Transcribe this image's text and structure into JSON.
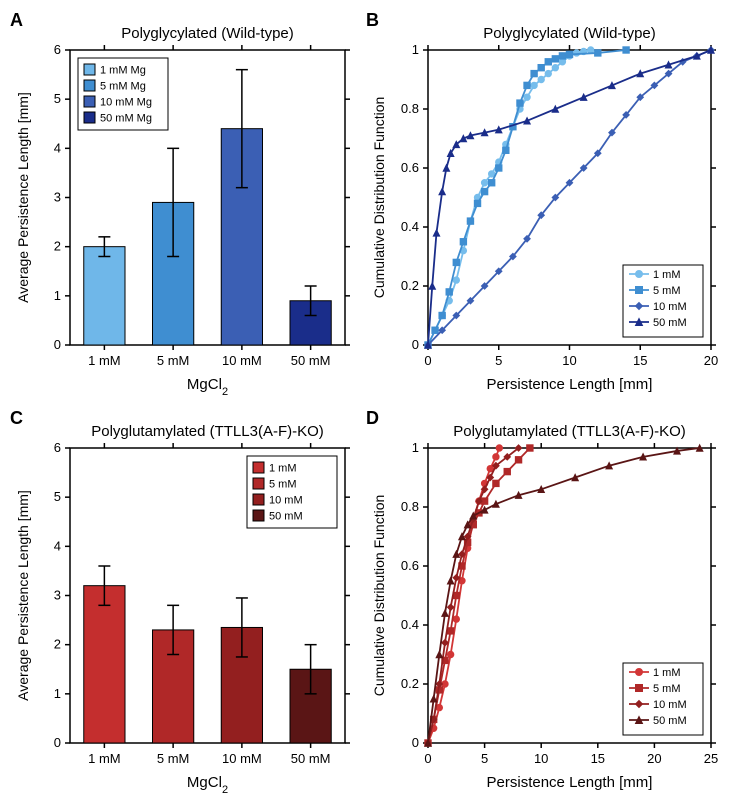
{
  "panelA": {
    "label": "A",
    "title": "Polyglycylated (Wild-type)",
    "type": "bar",
    "xlabel": "MgCl",
    "xlabel_sub": "2",
    "ylabel": "Average Persistence Length [mm]",
    "categories": [
      "1 mM",
      "5 mM",
      "10 mM",
      "50 mM"
    ],
    "values": [
      2.0,
      2.9,
      4.4,
      0.9
    ],
    "err": [
      0.2,
      1.1,
      1.2,
      0.3
    ],
    "bar_colors": [
      "#6fb7e9",
      "#3f8ed1",
      "#3b5fb4",
      "#1a2d8a"
    ],
    "ylim": [
      0,
      6
    ],
    "ytick_step": 1,
    "legend": [
      "1 mM Mg",
      "5 mM Mg",
      "10 mM Mg",
      "50 mM Mg"
    ],
    "legend_pos": "top-left",
    "border_color": "#000000",
    "bg_color": "#ffffff",
    "font_size": 12
  },
  "panelB": {
    "label": "B",
    "title": "Polyglycylated (Wild-type)",
    "type": "line",
    "xlabel": "Persistence Length [mm]",
    "ylabel": "Cumulative Distribution Function",
    "xlim": [
      0,
      20
    ],
    "ylim": [
      0,
      1
    ],
    "xtick_step": 5,
    "ytick_step": 0.2,
    "legend_pos": "bottom-right",
    "series": [
      {
        "name": "1 mM",
        "color": "#76bdec",
        "marker": "circle",
        "x": [
          0,
          0.5,
          1,
          1.5,
          2,
          2.5,
          3,
          3.5,
          4,
          4.5,
          5,
          5.5,
          6,
          6.5,
          7,
          7.5,
          8,
          8.5,
          9,
          9.5,
          10,
          10.5,
          11,
          11.5
        ],
        "y": [
          0,
          0.05,
          0.1,
          0.15,
          0.22,
          0.32,
          0.42,
          0.5,
          0.55,
          0.58,
          0.62,
          0.68,
          0.74,
          0.8,
          0.84,
          0.88,
          0.9,
          0.92,
          0.94,
          0.96,
          0.98,
          0.99,
          0.995,
          1
        ]
      },
      {
        "name": "5 mM",
        "color": "#3f8ed1",
        "marker": "square",
        "x": [
          0,
          0.5,
          1,
          1.5,
          2,
          2.5,
          3,
          3.5,
          4,
          4.5,
          5,
          5.5,
          6,
          6.5,
          7,
          7.5,
          8,
          8.5,
          9,
          9.5,
          10,
          12,
          14
        ],
        "y": [
          0,
          0.05,
          0.1,
          0.18,
          0.28,
          0.35,
          0.42,
          0.48,
          0.52,
          0.55,
          0.6,
          0.66,
          0.74,
          0.82,
          0.88,
          0.92,
          0.94,
          0.96,
          0.97,
          0.98,
          0.985,
          0.99,
          1
        ]
      },
      {
        "name": "10 mM",
        "color": "#3b5fb4",
        "marker": "diamond",
        "x": [
          0,
          1,
          2,
          3,
          4,
          5,
          6,
          7,
          8,
          9,
          10,
          11,
          12,
          13,
          14,
          15,
          16,
          17,
          18,
          19,
          20
        ],
        "y": [
          0,
          0.05,
          0.1,
          0.15,
          0.2,
          0.25,
          0.3,
          0.36,
          0.44,
          0.5,
          0.55,
          0.6,
          0.65,
          0.72,
          0.78,
          0.84,
          0.88,
          0.92,
          0.96,
          0.98,
          1
        ]
      },
      {
        "name": "50 mM",
        "color": "#1a2d8a",
        "marker": "triangle",
        "x": [
          0,
          0.3,
          0.6,
          1,
          1.3,
          1.6,
          2,
          2.5,
          3,
          4,
          5,
          7,
          9,
          11,
          13,
          15,
          17,
          19,
          20
        ],
        "y": [
          0,
          0.2,
          0.38,
          0.52,
          0.6,
          0.65,
          0.68,
          0.7,
          0.71,
          0.72,
          0.73,
          0.76,
          0.8,
          0.84,
          0.88,
          0.92,
          0.95,
          0.98,
          1
        ]
      }
    ]
  },
  "panelC": {
    "label": "C",
    "title": "Polyglutamylated (TTLL3(A-F)-KO)",
    "type": "bar",
    "xlabel": "MgCl",
    "xlabel_sub": "2",
    "ylabel": "Average Persistence Length [mm]",
    "categories": [
      "1 mM",
      "5 mM",
      "10 mM",
      "50 mM"
    ],
    "values": [
      3.2,
      2.3,
      2.35,
      1.5
    ],
    "err": [
      0.4,
      0.5,
      0.6,
      0.5
    ],
    "bar_colors": [
      "#c42e2e",
      "#b02828",
      "#931f1f",
      "#5a1515"
    ],
    "ylim": [
      0,
      6
    ],
    "ytick_step": 1,
    "legend": [
      "1 mM",
      "5 mM",
      "10 mM",
      "50 mM"
    ],
    "legend_pos": "top-right",
    "border_color": "#000000",
    "bg_color": "#ffffff",
    "font_size": 12
  },
  "panelD": {
    "label": "D",
    "title": "Polyglutamylated (TTLL3(A-F)-KO)",
    "type": "line",
    "xlabel": "Persistence Length [mm]",
    "ylabel": "Cumulative Distribution Function",
    "xlim": [
      0,
      25
    ],
    "ylim": [
      0,
      1
    ],
    "xtick_step": 5,
    "ytick_step": 0.2,
    "legend_pos": "bottom-right",
    "series": [
      {
        "name": "1 mM",
        "color": "#d23636",
        "marker": "circle",
        "x": [
          0,
          0.5,
          1,
          1.5,
          2,
          2.5,
          3,
          3.5,
          4,
          4.5,
          5,
          5.5,
          6,
          6.3
        ],
        "y": [
          0,
          0.05,
          0.12,
          0.2,
          0.3,
          0.42,
          0.55,
          0.66,
          0.75,
          0.82,
          0.88,
          0.93,
          0.97,
          1
        ]
      },
      {
        "name": "5 mM",
        "color": "#b02828",
        "marker": "square",
        "x": [
          0,
          0.5,
          1,
          1.5,
          2,
          2.5,
          3,
          3.5,
          4,
          4.5,
          5,
          6,
          7,
          8,
          9
        ],
        "y": [
          0,
          0.08,
          0.18,
          0.28,
          0.38,
          0.5,
          0.6,
          0.68,
          0.74,
          0.78,
          0.82,
          0.88,
          0.92,
          0.96,
          1
        ]
      },
      {
        "name": "10 mM",
        "color": "#931f1f",
        "marker": "diamond",
        "x": [
          0,
          0.5,
          1,
          1.5,
          2,
          2.5,
          3,
          3.5,
          4,
          4.5,
          5,
          5.5,
          6,
          7,
          8
        ],
        "y": [
          0,
          0.08,
          0.2,
          0.34,
          0.46,
          0.56,
          0.64,
          0.7,
          0.76,
          0.82,
          0.86,
          0.9,
          0.94,
          0.97,
          1
        ]
      },
      {
        "name": "50 mM",
        "color": "#5a1515",
        "marker": "triangle",
        "x": [
          0,
          0.5,
          1,
          1.5,
          2,
          2.5,
          3,
          3.5,
          4,
          5,
          6,
          8,
          10,
          13,
          16,
          19,
          22,
          24
        ],
        "y": [
          0,
          0.15,
          0.3,
          0.44,
          0.55,
          0.64,
          0.7,
          0.74,
          0.77,
          0.79,
          0.81,
          0.84,
          0.86,
          0.9,
          0.94,
          0.97,
          0.99,
          1
        ]
      }
    ]
  }
}
